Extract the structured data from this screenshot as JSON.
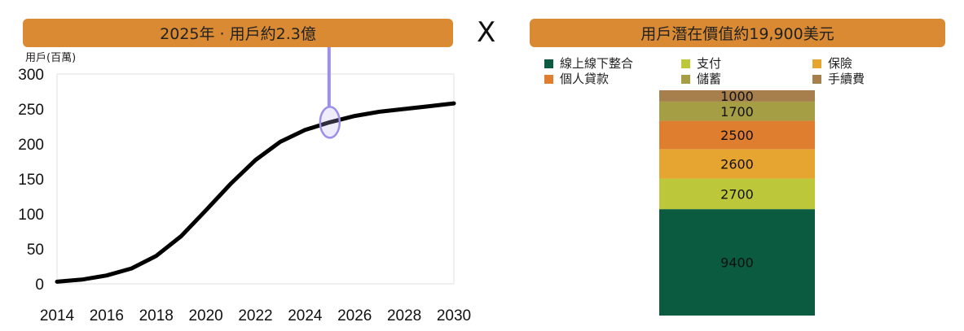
{
  "left_panel": {
    "banner": "2025年 · 用戶約2.3億"
  },
  "operator": "X",
  "right_panel": {
    "banner": "用戶潛在價值約19,900美元"
  },
  "chart_data": [
    {
      "type": "line",
      "title": "2025年 · 用戶約2.3億",
      "ylabel": "用戶(百萬)",
      "xlabel": "",
      "x": [
        2014,
        2015,
        2016,
        2017,
        2018,
        2019,
        2020,
        2021,
        2022,
        2023,
        2024,
        2025,
        2026,
        2027,
        2028,
        2029,
        2030
      ],
      "series": [
        {
          "values": [
            3,
            6,
            12,
            22,
            40,
            68,
            105,
            143,
            177,
            203,
            220,
            231,
            240,
            246,
            250,
            254,
            258
          ]
        }
      ],
      "xticks": [
        2014,
        2016,
        2018,
        2020,
        2022,
        2024,
        2026,
        2028,
        2030
      ],
      "yticks": [
        0,
        50,
        100,
        150,
        200,
        250,
        300
      ],
      "xlim": [
        2014,
        2030
      ],
      "ylim": [
        0,
        300
      ],
      "grid": false,
      "line_color": "#000000",
      "highlight": {
        "x": 2025,
        "y": 231,
        "color": "#9B8FE8"
      }
    },
    {
      "type": "bar",
      "title": "用戶潛在價值約19,900美元",
      "stacked": true,
      "legend_position": "top",
      "series": [
        {
          "name": "線上線下整合",
          "value": 9400,
          "color": "#0B5B40"
        },
        {
          "name": "支付",
          "value": 2700,
          "color": "#BCC83A"
        },
        {
          "name": "保險",
          "value": 2600,
          "color": "#E6A530"
        },
        {
          "name": "個人貸款",
          "value": 2500,
          "color": "#DE7E2E"
        },
        {
          "name": "儲蓄",
          "value": 1700,
          "color": "#A59E45"
        },
        {
          "name": "手續費",
          "value": 1000,
          "color": "#A67F4C"
        }
      ],
      "total": 19900
    }
  ]
}
